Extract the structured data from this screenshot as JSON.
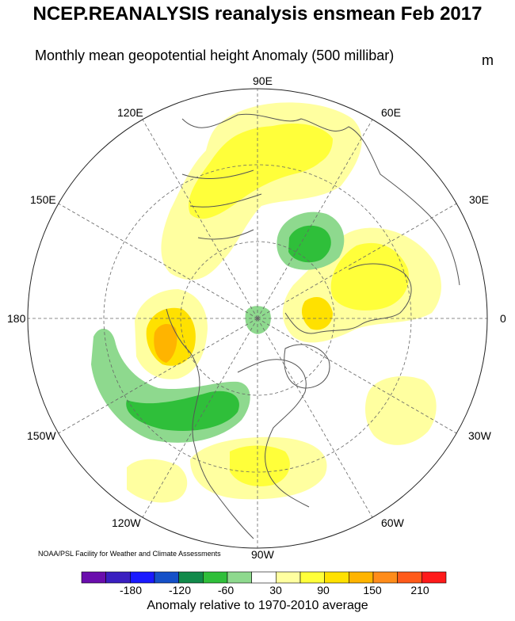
{
  "title": "NCEP.REANALYSIS reanalysis ensmean Feb 2017",
  "subtitle": "Monthly mean geopotential height Anomaly (500 millibar)",
  "units": "m",
  "credit": "NOAA/PSL Facility for Weather and Climate Assessments",
  "longitude_labels": [
    "90E",
    "60E",
    "30E",
    "0",
    "30W",
    "60W",
    "90W",
    "120W",
    "150W",
    "180",
    "150E",
    "120E"
  ],
  "colorbar": {
    "label": "Anomaly relative to 1970-2010 average",
    "tick_labels": [
      "-180",
      "-120",
      "-60",
      "30",
      "90",
      "150",
      "210"
    ],
    "colors": [
      "#6a0dad",
      "#3a1fc0",
      "#1a1aff",
      "#1550c8",
      "#118a4a",
      "#2fbf3a",
      "#8ed98e",
      "#ffffff",
      "#ffffa0",
      "#ffff3a",
      "#ffe100",
      "#ffb400",
      "#ff8c1a",
      "#ff5a1a",
      "#ff1a1a"
    ]
  },
  "anomaly_regions": [
    {
      "name": "Siberia / North Asia positive",
      "sign": "positive",
      "color": "#ffff3a"
    },
    {
      "name": "Europe positive",
      "sign": "positive",
      "color": "#ffe100"
    },
    {
      "name": "Alaska positive",
      "sign": "positive",
      "color": "#ffb400"
    },
    {
      "name": "Barents Sea negative",
      "sign": "negative",
      "color": "#2fbf3a"
    },
    {
      "name": "North Pacific negative",
      "sign": "negative",
      "color": "#2fbf3a"
    },
    {
      "name": "Eastern US positive",
      "sign": "positive",
      "color": "#ffff3a"
    },
    {
      "name": "North Atlantic positive",
      "sign": "positive",
      "color": "#ffffa0"
    }
  ]
}
